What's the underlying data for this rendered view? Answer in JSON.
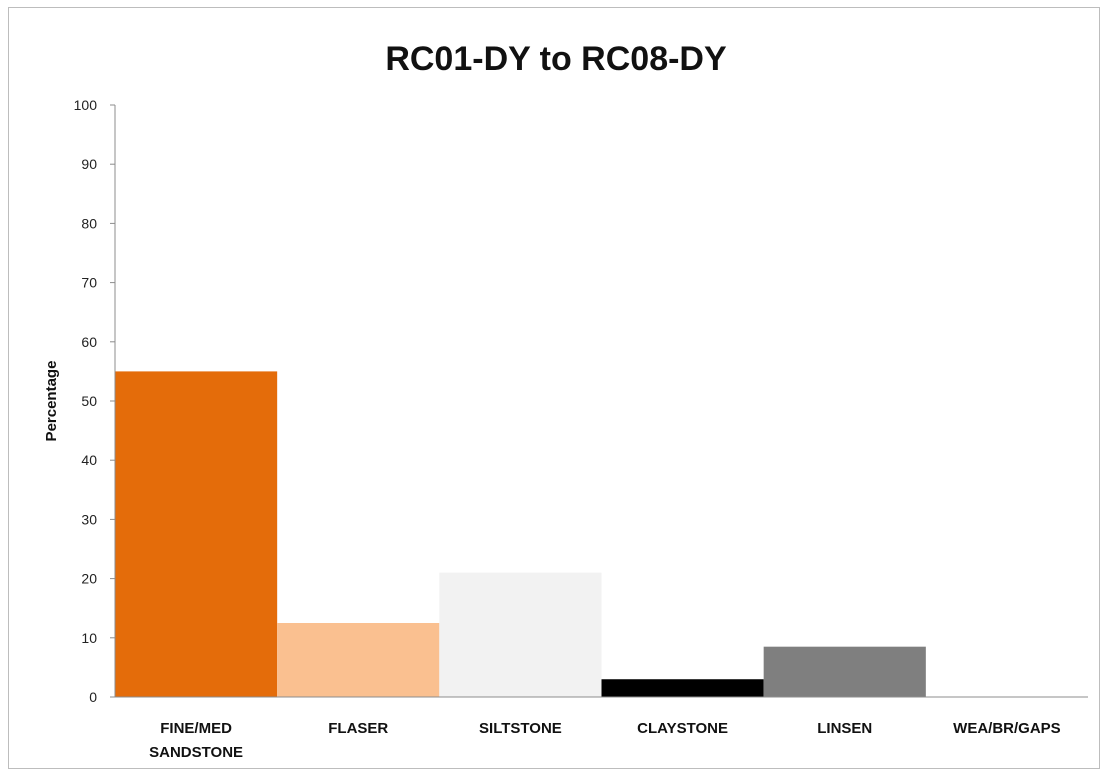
{
  "chart_data": {
    "type": "bar",
    "title": "RC01-DY to RC08-DY",
    "xlabel": "",
    "ylabel": "Percentage",
    "ylim": [
      0,
      100
    ],
    "yticks": [
      0,
      10,
      20,
      30,
      40,
      50,
      60,
      70,
      80,
      90,
      100
    ],
    "categories": [
      [
        "FINE/MED",
        "SANDSTONE"
      ],
      [
        "FLASER"
      ],
      [
        "SILTSTONE"
      ],
      [
        "CLAYSTONE"
      ],
      [
        "LINSEN"
      ],
      [
        "WEA/BR/GAPS"
      ]
    ],
    "values": [
      55,
      12.5,
      21,
      3,
      8.5,
      0
    ],
    "colors": [
      "#e46c0a",
      "#fac090",
      "#f2f2f2",
      "#000000",
      "#7f7f7f",
      "#ffffff"
    ],
    "grid": false,
    "legend": "none"
  }
}
